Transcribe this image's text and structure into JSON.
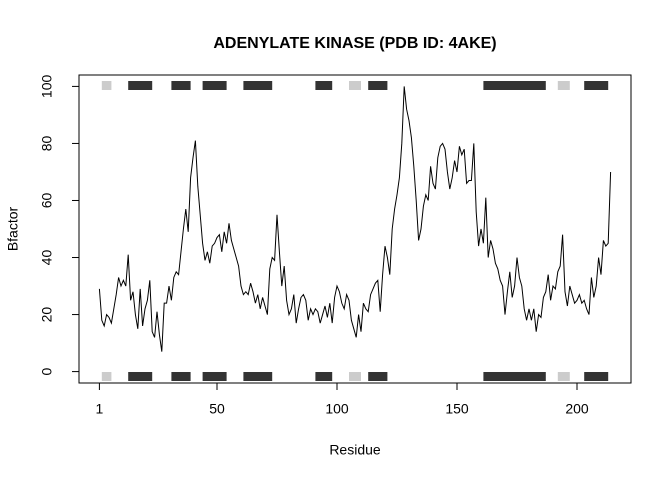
{
  "chart_data": {
    "type": "line",
    "title": "ADENYLATE KINASE (PDB ID: 4AKE)",
    "x_label": "Residue",
    "y_label": "Bfactor",
    "x": [
      1,
      2,
      3,
      4,
      5,
      6,
      7,
      8,
      9,
      10,
      11,
      12,
      13,
      14,
      15,
      16,
      17,
      18,
      19,
      20,
      21,
      22,
      23,
      24,
      25,
      26,
      27,
      28,
      29,
      30,
      31,
      32,
      33,
      34,
      35,
      36,
      37,
      38,
      39,
      40,
      41,
      42,
      43,
      44,
      45,
      46,
      47,
      48,
      49,
      50,
      51,
      52,
      53,
      54,
      55,
      56,
      57,
      58,
      59,
      60,
      61,
      62,
      63,
      64,
      65,
      66,
      67,
      68,
      69,
      70,
      71,
      72,
      73,
      74,
      75,
      76,
      77,
      78,
      79,
      80,
      81,
      82,
      83,
      84,
      85,
      86,
      87,
      88,
      89,
      90,
      91,
      92,
      93,
      94,
      95,
      96,
      97,
      98,
      99,
      100,
      101,
      102,
      103,
      104,
      105,
      106,
      107,
      108,
      109,
      110,
      111,
      112,
      113,
      114,
      115,
      116,
      117,
      118,
      119,
      120,
      121,
      122,
      123,
      124,
      125,
      126,
      127,
      128,
      129,
      130,
      131,
      132,
      133,
      134,
      135,
      136,
      137,
      138,
      139,
      140,
      141,
      142,
      143,
      144,
      145,
      146,
      147,
      148,
      149,
      150,
      151,
      152,
      153,
      154,
      155,
      156,
      157,
      158,
      159,
      160,
      161,
      162,
      163,
      164,
      165,
      166,
      167,
      168,
      169,
      170,
      171,
      172,
      173,
      174,
      175,
      176,
      177,
      178,
      179,
      180,
      181,
      182,
      183,
      184,
      185,
      186,
      187,
      188,
      189,
      190,
      191,
      192,
      193,
      194,
      195,
      196,
      197,
      198,
      199,
      200,
      201,
      202,
      203,
      204,
      205,
      206,
      207,
      208,
      209,
      210,
      211,
      212,
      213,
      214
    ],
    "series": [
      {
        "color": "#000000",
        "values": [
          29,
          18,
          16,
          20,
          19,
          17,
          22,
          27,
          33,
          30,
          32,
          30,
          41,
          25,
          28,
          20,
          15,
          29,
          16,
          22,
          25,
          32,
          14,
          12,
          21,
          13,
          7,
          24,
          24,
          30,
          25,
          33,
          35,
          34,
          42,
          50,
          57,
          49,
          68,
          75,
          81,
          65,
          55,
          45,
          39,
          42,
          38,
          44,
          45,
          47,
          48,
          42,
          49,
          45,
          52,
          46,
          43,
          40,
          37,
          30,
          27,
          28,
          27,
          31,
          28,
          24,
          27,
          22,
          26,
          23,
          20,
          36,
          40,
          39,
          55,
          42,
          30,
          37,
          25,
          20,
          22,
          27,
          17,
          22,
          26,
          27,
          25,
          18,
          22,
          20,
          22,
          21,
          17,
          20,
          23,
          19,
          24,
          17,
          26,
          30,
          28,
          24,
          22,
          27,
          25,
          18,
          15,
          12,
          20,
          14,
          24,
          22,
          21,
          27,
          29,
          31,
          32,
          21,
          34,
          44,
          40,
          34,
          50,
          57,
          62,
          68,
          80,
          100,
          92,
          88,
          82,
          72,
          60,
          46,
          50,
          58,
          62,
          60,
          72,
          66,
          64,
          75,
          79,
          80,
          78,
          70,
          64,
          68,
          74,
          70,
          79,
          76,
          78,
          66,
          67,
          67,
          80,
          56,
          44,
          50,
          45,
          61,
          40,
          46,
          43,
          38,
          36,
          32,
          30,
          20,
          28,
          35,
          26,
          30,
          40,
          33,
          30,
          22,
          18,
          22,
          18,
          22,
          14,
          20,
          19,
          26,
          28,
          34,
          25,
          30,
          29,
          35,
          37,
          48,
          28,
          23,
          30,
          27,
          24,
          25,
          27,
          24,
          25,
          22,
          20,
          33,
          26,
          30,
          40,
          34,
          46,
          44,
          45,
          70
        ]
      }
    ],
    "xlim": [
      -7.5,
      222.5
    ],
    "ylim": [
      -4,
      104
    ],
    "xticks": [
      1,
      50,
      100,
      150,
      200
    ],
    "yticks": [
      0,
      20,
      40,
      60,
      80,
      100
    ],
    "sse": [
      {
        "color": "#333333",
        "ranges": [
          [
            13,
            23
          ],
          [
            31,
            39
          ],
          [
            44,
            54
          ],
          [
            61,
            73
          ],
          [
            91,
            98
          ],
          [
            113,
            121
          ],
          [
            161,
            187
          ],
          [
            203,
            213
          ]
        ]
      },
      {
        "color": "#cccccc",
        "ranges": [
          [
            2,
            6
          ],
          [
            105,
            110
          ],
          [
            192,
            197
          ]
        ]
      }
    ]
  }
}
